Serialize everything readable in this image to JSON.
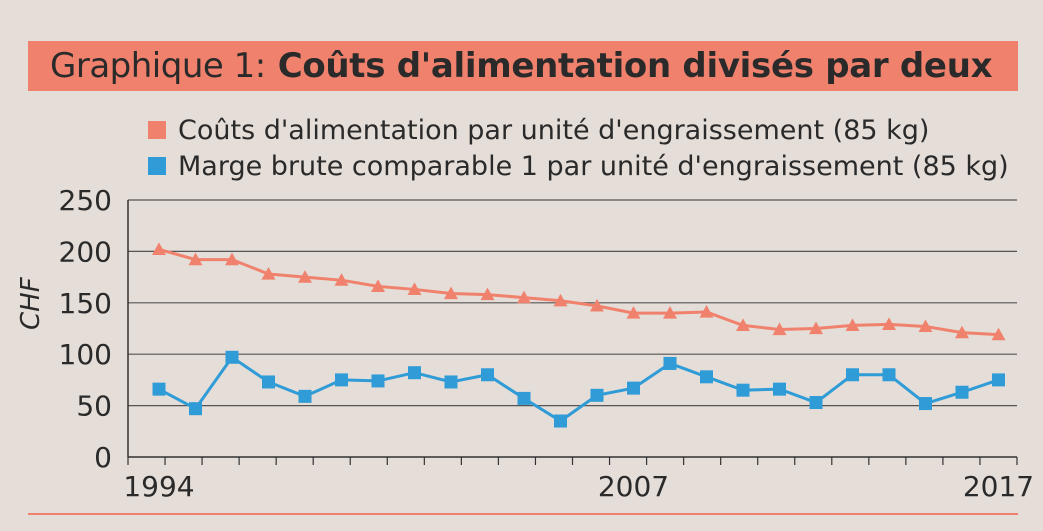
{
  "title": {
    "prefix": "Graphique 1:",
    "main": "Coûts d'alimentation divisés par deux"
  },
  "chart_data": {
    "type": "line",
    "ylabel": "CHF",
    "ylim": [
      0,
      250
    ],
    "yticks": [
      0,
      50,
      100,
      150,
      200,
      250
    ],
    "x": [
      1994,
      1995,
      1996,
      1997,
      1998,
      1999,
      2000,
      2001,
      2002,
      2003,
      2004,
      2005,
      2006,
      2007,
      2008,
      2009,
      2010,
      2011,
      2012,
      2013,
      2014,
      2015,
      2016,
      2017
    ],
    "xtick_labels": [
      "1994",
      "2007",
      "2017"
    ],
    "series": [
      {
        "name": "Coûts d'alimentation par unité d'engraissement (85 kg)",
        "color": "#f0826d",
        "marker": "triangle",
        "values": [
          202,
          192,
          192,
          178,
          175,
          172,
          166,
          163,
          159,
          158,
          155,
          152,
          147,
          140,
          140,
          141,
          128,
          124,
          125,
          128,
          129,
          127,
          121,
          119
        ]
      },
      {
        "name": "Marge brute comparable 1 par unité d'engraissement (85 kg)",
        "color": "#2f9cd7",
        "marker": "square",
        "values": [
          66,
          47,
          97,
          73,
          59,
          75,
          74,
          82,
          73,
          80,
          57,
          35,
          60,
          67,
          91,
          78,
          65,
          66,
          53,
          80,
          80,
          52,
          63,
          75
        ]
      }
    ]
  }
}
